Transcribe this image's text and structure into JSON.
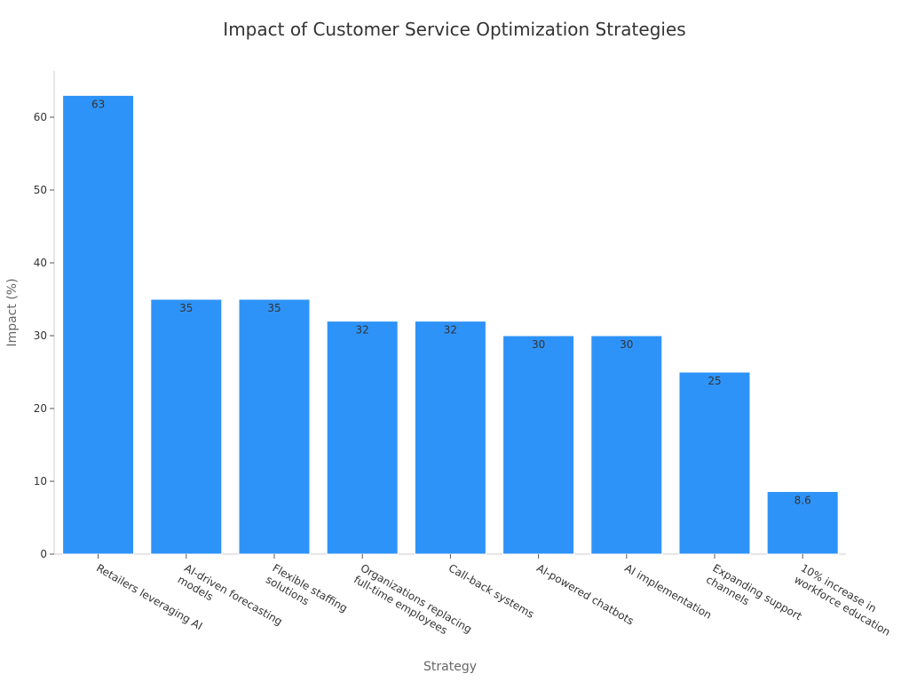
{
  "chart_data": {
    "type": "bar",
    "title": "Impact of Customer Service Optimization Strategies",
    "xlabel": "Strategy",
    "ylabel": "Impact (%)",
    "ylim": [
      0,
      66
    ],
    "yticks": [
      0,
      10,
      20,
      30,
      40,
      50,
      60
    ],
    "grid": false,
    "bar_color": "#2e93f8",
    "categories": [
      [
        "Retailers leveraging AI"
      ],
      [
        "AI-driven forecasting",
        "models"
      ],
      [
        "Flexible staffing",
        "solutions"
      ],
      [
        "Organizations replacing",
        "full-time employees"
      ],
      [
        "Call-back systems"
      ],
      [
        "AI-powered chatbots"
      ],
      [
        "AI implementation"
      ],
      [
        "Expanding support",
        "channels"
      ],
      [
        "10% increase in",
        "workforce education"
      ]
    ],
    "values": [
      63,
      35,
      35,
      32,
      32,
      30,
      30,
      25,
      8.6
    ],
    "data_labels": [
      "63",
      "35",
      "35",
      "32",
      "32",
      "30",
      "30",
      "25",
      "8.6"
    ]
  }
}
